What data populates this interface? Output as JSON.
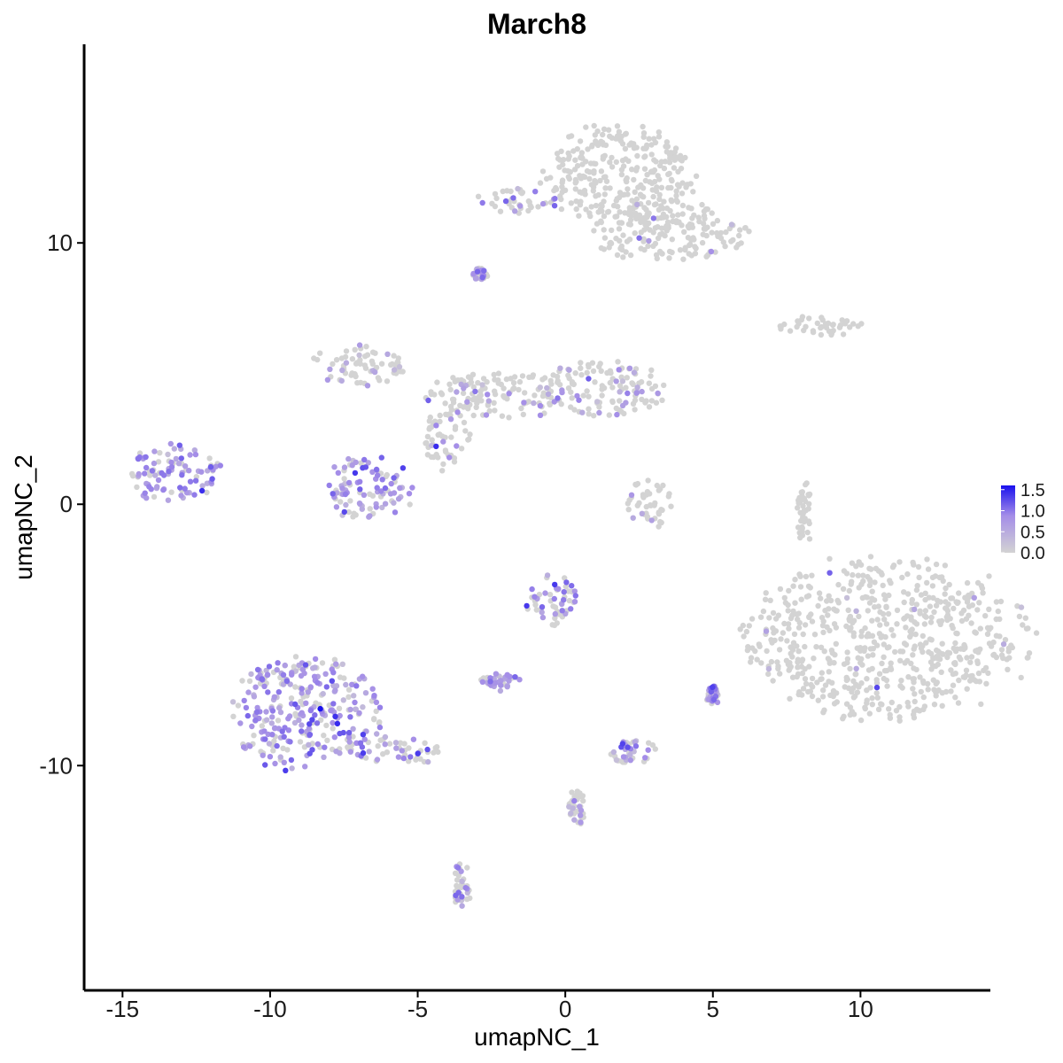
{
  "chart_data": {
    "type": "scatter",
    "title": "March8",
    "xlabel": "umapNC_1",
    "ylabel": "umapNC_2",
    "xlim": [
      -16.3,
      14.4
    ],
    "ylim": [
      -18.6,
      17.6
    ],
    "x_ticks": [
      -15,
      -10,
      -5,
      0,
      5,
      10
    ],
    "x_tick_labels": [
      "-15",
      "-10",
      "-5",
      "0",
      "5",
      "10"
    ],
    "y_ticks": [
      10,
      0,
      -10
    ],
    "y_tick_labels": [
      "10",
      "0",
      "-10"
    ],
    "grid": false,
    "legend": {
      "placement": "right",
      "type": "colorbar",
      "min": 0.0,
      "max": 1.6,
      "ticks": [
        1.5,
        1.0,
        0.5,
        0.0
      ],
      "tick_labels": [
        "1.5",
        "1.0",
        "0.5",
        "0.0"
      ]
    },
    "colors": {
      "low": "#d3d3d3",
      "mid": "#a48de8",
      "high": "#1a10ee"
    },
    "clusters": [
      {
        "cx": 10.9,
        "cy": -5.1,
        "rx": 4.7,
        "ry": 3.1,
        "expr_frac": 0.01,
        "expr_mean": 0.6
      },
      {
        "cx": 1.8,
        "cy": 12.6,
        "rx": 2.6,
        "ry": 1.9,
        "expr_frac": 0.0,
        "expr_mean": 0.5
      },
      {
        "cx": 3.4,
        "cy": 10.5,
        "rx": 2.8,
        "ry": 1.2,
        "expr_frac": 0.03,
        "expr_mean": 0.6
      },
      {
        "cx": -1.6,
        "cy": 11.6,
        "rx": 1.4,
        "ry": 0.5,
        "expr_frac": 0.35,
        "expr_mean": 0.9
      },
      {
        "cx": 8.5,
        "cy": 6.8,
        "rx": 1.5,
        "ry": 0.4,
        "expr_frac": 0.05,
        "expr_mean": 0.5
      },
      {
        "cx": -13.3,
        "cy": 1.2,
        "rx": 1.6,
        "ry": 1.1,
        "expr_frac": 0.7,
        "expr_mean": 0.75
      },
      {
        "cx": -6.7,
        "cy": 0.6,
        "rx": 1.5,
        "ry": 1.2,
        "expr_frac": 0.6,
        "expr_mean": 0.75
      },
      {
        "cx": -7.0,
        "cy": 5.3,
        "rx": 1.6,
        "ry": 0.8,
        "expr_frac": 0.1,
        "expr_mean": 0.6
      },
      {
        "cx": -2.4,
        "cy": 4.2,
        "rx": 2.6,
        "ry": 0.9,
        "expr_frac": 0.15,
        "expr_mean": 0.7
      },
      {
        "cx": 1.4,
        "cy": 4.4,
        "rx": 2.1,
        "ry": 1.1,
        "expr_frac": 0.22,
        "expr_mean": 0.7
      },
      {
        "cx": -4.0,
        "cy": 2.5,
        "rx": 0.8,
        "ry": 1.2,
        "expr_frac": 0.25,
        "expr_mean": 0.75
      },
      {
        "cx": 2.9,
        "cy": 0.0,
        "rx": 0.9,
        "ry": 0.9,
        "expr_frac": 0.15,
        "expr_mean": 0.6
      },
      {
        "cx": -8.8,
        "cy": -8.0,
        "rx": 2.5,
        "ry": 2.2,
        "expr_frac": 0.65,
        "expr_mean": 0.75
      },
      {
        "cx": -5.8,
        "cy": -9.4,
        "rx": 1.6,
        "ry": 0.6,
        "expr_frac": 0.4,
        "expr_mean": 0.75
      },
      {
        "cx": -0.4,
        "cy": -3.7,
        "rx": 1.0,
        "ry": 1.0,
        "expr_frac": 0.55,
        "expr_mean": 0.95
      },
      {
        "cx": -2.2,
        "cy": -6.8,
        "rx": 0.7,
        "ry": 0.35,
        "expr_frac": 0.5,
        "expr_mean": 0.75
      },
      {
        "cx": 2.3,
        "cy": -9.5,
        "rx": 0.8,
        "ry": 0.5,
        "expr_frac": 0.6,
        "expr_mean": 0.7
      },
      {
        "cx": -3.5,
        "cy": -14.6,
        "rx": 0.3,
        "ry": 0.9,
        "expr_frac": 0.4,
        "expr_mean": 0.7
      },
      {
        "cx": 0.4,
        "cy": -11.6,
        "rx": 0.3,
        "ry": 0.7,
        "expr_frac": 0.3,
        "expr_mean": 0.7
      },
      {
        "cx": 5.0,
        "cy": -7.3,
        "rx": 0.25,
        "ry": 0.35,
        "expr_frac": 0.6,
        "expr_mean": 0.8
      },
      {
        "cx": -2.9,
        "cy": 8.8,
        "rx": 0.25,
        "ry": 0.25,
        "expr_frac": 0.4,
        "expr_mean": 0.8
      },
      {
        "cx": 8.1,
        "cy": -0.4,
        "rx": 0.25,
        "ry": 1.3,
        "expr_frac": 0.05,
        "expr_mean": 0.6
      }
    ]
  }
}
